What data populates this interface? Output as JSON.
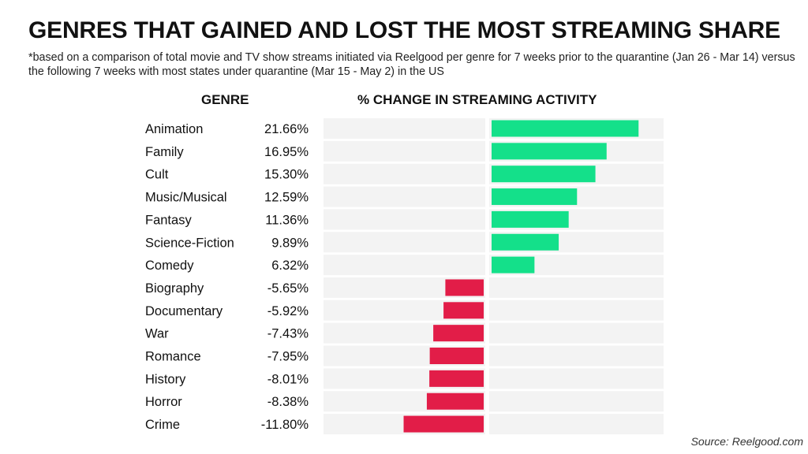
{
  "chart_data": {
    "type": "bar",
    "orientation": "horizontal",
    "title": "GENRES THAT GAINED AND LOST THE MOST STREAMING SHARE",
    "subtitle": "*based on a comparison of total movie and TV show streams initiated via Reelgood per genre for 7 weeks prior to the quarantine (Jan 26 - Mar 14) versus the following 7 weeks with most states under quarantine (Mar 15 - May 2) in the US",
    "column_headers": {
      "genre": "GENRE",
      "change": "% CHANGE IN STREAMING ACTIVITY"
    },
    "categories": [
      "Animation",
      "Family",
      "Cult",
      "Music/Musical",
      "Fantasy",
      "Science-Fiction",
      "Comedy",
      "Biography",
      "Documentary",
      "War",
      "Romance",
      "History",
      "Horror",
      "Crime"
    ],
    "values": [
      21.66,
      16.95,
      15.3,
      12.59,
      11.36,
      9.89,
      6.32,
      -5.65,
      -5.92,
      -7.43,
      -7.95,
      -8.01,
      -8.38,
      -11.8
    ],
    "value_labels": [
      "21.66%",
      "16.95%",
      "15.30%",
      "12.59%",
      "11.36%",
      "9.89%",
      "6.32%",
      "-5.65%",
      "-5.92%",
      "-7.43%",
      "-7.95%",
      "-8.01%",
      "-8.38%",
      "-11.80%"
    ],
    "source": "Source: Reelgood.com"
  },
  "colors": {
    "positive": "#14e08a",
    "negative": "#e21d48",
    "row_background": "#f3f3f3"
  }
}
